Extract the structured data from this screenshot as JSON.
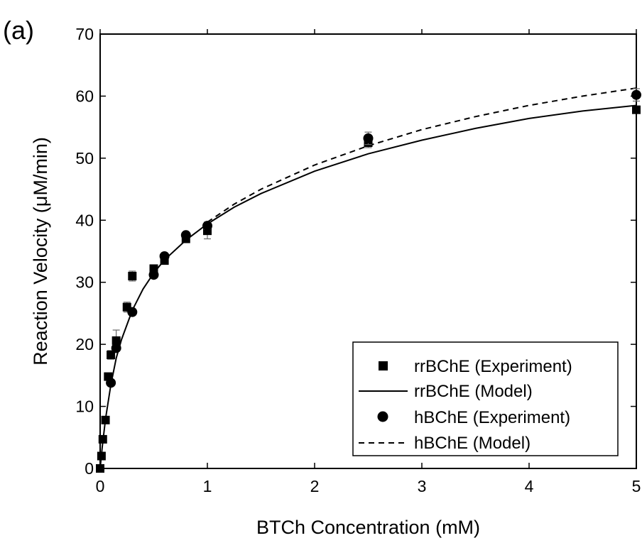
{
  "panel_label": "(a)",
  "chart_data": {
    "type": "scatter",
    "xlabel": "BTCh Concentration (mM)",
    "ylabel": "Reaction Velocity (μM/min)",
    "xlim": [
      0,
      5
    ],
    "ylim": [
      0,
      70
    ],
    "xticks": [
      "0",
      "1",
      "2",
      "3",
      "4",
      "5"
    ],
    "yticks": [
      "0",
      "10",
      "20",
      "30",
      "40",
      "50",
      "60",
      "70"
    ],
    "grid": false,
    "legend_position": "bottom-right",
    "series": [
      {
        "name": "rrBChE (Experiment)",
        "kind": "markers",
        "marker": "square",
        "color": "#000000",
        "x": [
          0.0,
          0.0125,
          0.025,
          0.05,
          0.075,
          0.1,
          0.15,
          0.25,
          0.3,
          0.5,
          0.6,
          0.8,
          1.0,
          2.5,
          5.0
        ],
        "y": [
          0.0,
          2.0,
          4.7,
          7.8,
          14.8,
          18.3,
          20.6,
          26.0,
          31.0,
          32.2,
          33.5,
          37.0,
          38.3,
          52.5,
          57.8
        ],
        "error": [
          0.3,
          0.3,
          0.4,
          0.5,
          0.6,
          0.7,
          1.7,
          0.8,
          0.8,
          0.6,
          0.6,
          0.6,
          1.3,
          0.8,
          0.6
        ]
      },
      {
        "name": "rrBChE (Model)",
        "kind": "line",
        "dash": "solid",
        "color": "#000000",
        "x": [
          0,
          0.02,
          0.05,
          0.1,
          0.15,
          0.2,
          0.3,
          0.4,
          0.5,
          0.6,
          0.8,
          1.0,
          1.25,
          1.5,
          2.0,
          2.5,
          3.0,
          3.5,
          4.0,
          4.5,
          5.0
        ],
        "y": [
          0,
          3.5,
          8.0,
          13.5,
          17.8,
          20.8,
          25.5,
          28.9,
          31.5,
          33.6,
          36.8,
          39.4,
          42.1,
          44.3,
          47.9,
          50.7,
          52.9,
          54.8,
          56.4,
          57.6,
          58.5
        ]
      },
      {
        "name": "hBChE (Experiment)",
        "kind": "markers",
        "marker": "circle",
        "color": "#000000",
        "x": [
          0.1,
          0.15,
          0.3,
          0.5,
          0.6,
          0.8,
          1.0,
          2.5,
          5.0
        ],
        "y": [
          13.8,
          19.4,
          25.2,
          31.2,
          34.2,
          37.6,
          39.1,
          53.2,
          60.2
        ],
        "error": [
          0.4,
          0.5,
          0.5,
          0.5,
          0.5,
          0.5,
          0.6,
          1.0,
          1.0
        ]
      },
      {
        "name": "hBChE (Model)",
        "kind": "line",
        "dash": "dashed",
        "color": "#000000",
        "x": [
          1.0,
          1.25,
          1.5,
          2.0,
          2.5,
          3.0,
          3.5,
          4.0,
          4.5,
          5.0
        ],
        "y": [
          39.7,
          42.6,
          45.0,
          48.9,
          52.0,
          54.6,
          56.7,
          58.5,
          60.0,
          61.3
        ]
      }
    ]
  }
}
